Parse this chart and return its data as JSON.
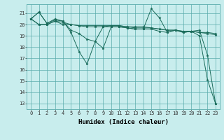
{
  "xlabel": "Humidex (Indice chaleur)",
  "ylabel": "",
  "xlim": [
    -0.5,
    23.5
  ],
  "ylim": [
    12.5,
    21.8
  ],
  "yticks": [
    13,
    14,
    15,
    16,
    17,
    18,
    19,
    20,
    21
  ],
  "xticks": [
    0,
    1,
    2,
    3,
    4,
    5,
    6,
    7,
    8,
    9,
    10,
    11,
    12,
    13,
    14,
    15,
    16,
    17,
    18,
    19,
    20,
    21,
    22,
    23
  ],
  "bg_color": "#c8eded",
  "grid_color": "#5aacac",
  "line_color": "#1a6b5a",
  "series": [
    [
      20.5,
      21.1,
      20.1,
      20.4,
      20.3,
      19.3,
      17.6,
      16.5,
      18.5,
      17.9,
      19.8,
      19.8,
      19.7,
      19.6,
      19.6,
      21.4,
      20.6,
      19.3,
      19.5,
      19.3,
      19.4,
      19.0,
      15.1,
      13.0
    ],
    [
      20.5,
      21.1,
      20.1,
      20.5,
      20.3,
      19.5,
      19.2,
      18.7,
      18.5,
      19.8,
      19.8,
      19.8,
      19.7,
      19.6,
      19.6,
      19.6,
      19.4,
      19.3,
      19.5,
      19.3,
      19.4,
      19.5,
      17.3,
      13.0
    ],
    [
      20.5,
      20.0,
      20.0,
      20.3,
      20.0,
      20.0,
      19.9,
      19.9,
      19.9,
      19.9,
      19.9,
      19.9,
      19.8,
      19.8,
      19.8,
      19.7,
      19.6,
      19.5,
      19.5,
      19.4,
      19.4,
      19.3,
      19.2,
      19.1
    ],
    [
      20.5,
      20.0,
      20.0,
      20.3,
      20.2,
      20.0,
      19.9,
      19.8,
      19.8,
      19.8,
      19.9,
      19.9,
      19.8,
      19.7,
      19.7,
      19.7,
      19.6,
      19.5,
      19.5,
      19.4,
      19.4,
      19.3,
      19.3,
      19.2
    ]
  ],
  "tick_fontsize": 5,
  "xlabel_fontsize": 6.5,
  "marker_size": 2.5
}
